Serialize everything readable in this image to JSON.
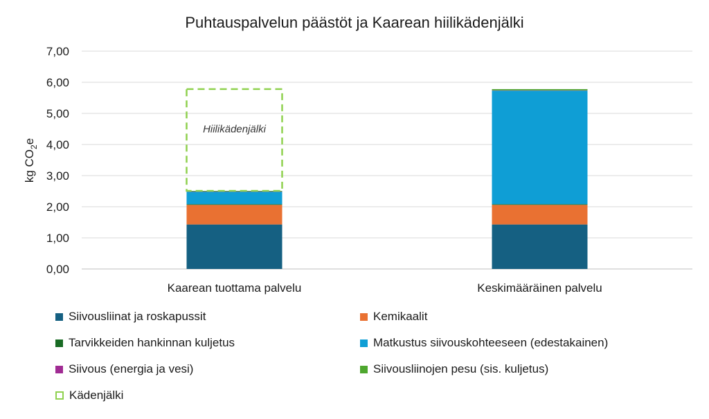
{
  "chart_data": {
    "type": "stacked-bar",
    "title": "Puhtauspalvelun päästöt ja Kaarean hiilikädenjälki",
    "ylabel": {
      "main": "kg CO",
      "sub": "2",
      "tail": "e"
    },
    "xlabel": "",
    "ylim": [
      0,
      7
    ],
    "yticks": [
      {
        "value": 0,
        "label": "0,00"
      },
      {
        "value": 1,
        "label": "1,00"
      },
      {
        "value": 2,
        "label": "2,00"
      },
      {
        "value": 3,
        "label": "3,00"
      },
      {
        "value": 4,
        "label": "4,00"
      },
      {
        "value": 5,
        "label": "5,00"
      },
      {
        "value": 6,
        "label": "6,00"
      },
      {
        "value": 7,
        "label": "7,00"
      }
    ],
    "grid": true,
    "legend_position": "bottom",
    "categories": [
      "Kaarean tuottama palvelu",
      "Keskimääräinen palvelu"
    ],
    "series": [
      {
        "name": "Siivousliinat ja roskapussit",
        "color": "#156082",
        "values": [
          1.43,
          1.43
        ]
      },
      {
        "name": "Kemikaalit",
        "color": "#e97132",
        "values": [
          0.63,
          0.63
        ]
      },
      {
        "name": "Tarvikkeiden hankinnan kuljetus",
        "color": "#196b24",
        "values": [
          0.02,
          0.02
        ]
      },
      {
        "name": "Matkustus siivouskohteeseen (edestakainen)",
        "color": "#0f9ed5",
        "values": [
          0.4,
          3.65
        ]
      },
      {
        "name": "Siivous (energia ja vesi)",
        "color": "#a02b93",
        "values": [
          0.01,
          0.01
        ]
      },
      {
        "name": "Siivousliinojen pesu (sis. kuljetus)",
        "color": "#4ea72e",
        "values": [
          0.02,
          0.04
        ]
      }
    ],
    "footprint": {
      "name": "Kädenjälki",
      "color": "#8fd14f",
      "category_index": 0,
      "from": 2.51,
      "to": 5.78,
      "label": "Hiilikädenjälki"
    }
  }
}
